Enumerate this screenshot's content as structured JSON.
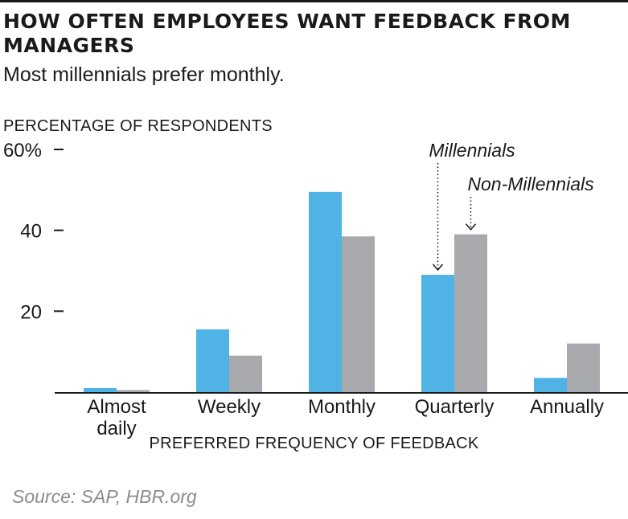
{
  "chart_data": {
    "type": "bar",
    "title": "HOW OFTEN EMPLOYEES WANT FEEDBACK FROM MANAGERS",
    "subtitle": "Most millennials prefer monthly.",
    "ylabel": "PERCENTAGE OF RESPONDENTS",
    "xlabel": "PREFERRED FREQUENCY OF FEEDBACK",
    "ylim": [
      0,
      60
    ],
    "yticks": [
      {
        "value": 60,
        "label": "60%"
      },
      {
        "value": 40,
        "label": "40"
      },
      {
        "value": 20,
        "label": "20"
      }
    ],
    "categories": [
      "Almost daily",
      "Weekly",
      "Monthly",
      "Quarterly",
      "Annually"
    ],
    "category_lines": [
      [
        "Almost",
        "daily"
      ],
      [
        "Weekly"
      ],
      [
        "Monthly"
      ],
      [
        "Quarterly"
      ],
      [
        "Annually"
      ]
    ],
    "series": [
      {
        "name": "Millennials",
        "color": "#4fb3e6",
        "values": [
          1,
          15.5,
          49.5,
          29,
          3.5
        ]
      },
      {
        "name": "Non-Millennials",
        "color": "#a7a9ac",
        "values": [
          0.5,
          9,
          38.5,
          39,
          12
        ]
      }
    ],
    "annotations": [
      {
        "text": "Millennials",
        "series": 0,
        "category": 3
      },
      {
        "text": "Non-Millennials",
        "series": 1,
        "category": 3
      }
    ],
    "grid": false,
    "legend": "none"
  },
  "source": "Source: SAP, HBR.org"
}
